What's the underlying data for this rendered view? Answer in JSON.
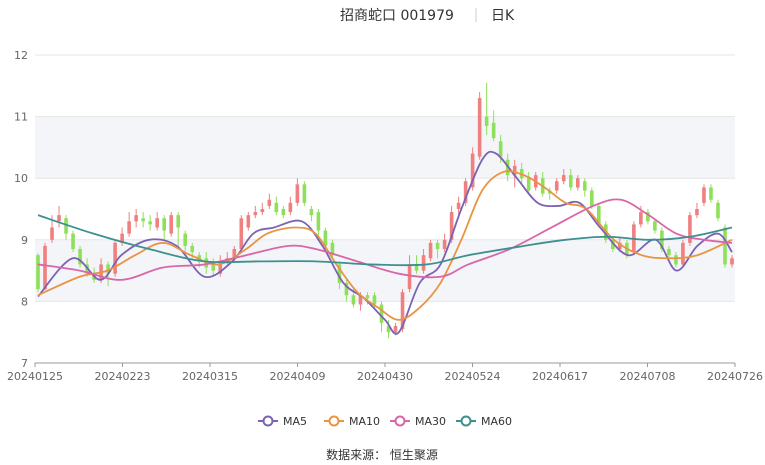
{
  "header": {
    "stock_title": "招商蛇口 001979",
    "period": "日K"
  },
  "source": "数据来源： 恒生聚源",
  "colors": {
    "up": "#f07f7f",
    "down": "#8ee05a",
    "grid_band": "#f4f5f8",
    "axis": "#999999"
  },
  "chart_data": {
    "type": "candlestick",
    "title": "招商蛇口 001979",
    "subtitle": "日K",
    "ylim": [
      7,
      12
    ],
    "y_ticks": [
      7,
      8,
      9,
      10,
      11,
      12
    ],
    "x_tick_labels": [
      "20240125",
      "20240223",
      "20240315",
      "20240409",
      "20240430",
      "20240524",
      "20240617",
      "20240708",
      "20240726"
    ],
    "ohlc": [
      [
        8.75,
        8.2,
        8.78,
        8.15
      ],
      [
        8.2,
        8.9,
        8.95,
        8.18
      ],
      [
        9.0,
        9.2,
        9.4,
        8.95
      ],
      [
        9.3,
        9.4,
        9.55,
        9.2
      ],
      [
        9.35,
        9.1,
        9.4,
        9.0
      ],
      [
        9.1,
        8.85,
        9.15,
        8.8
      ],
      [
        8.85,
        8.6,
        8.9,
        8.55
      ],
      [
        8.6,
        8.45,
        8.7,
        8.4
      ],
      [
        8.45,
        8.35,
        8.55,
        8.3
      ],
      [
        8.35,
        8.6,
        8.7,
        8.3
      ],
      [
        8.6,
        8.45,
        8.65,
        8.25
      ],
      [
        8.45,
        8.95,
        9.0,
        8.4
      ],
      [
        8.95,
        9.1,
        9.2,
        8.9
      ],
      [
        9.1,
        9.3,
        9.45,
        9.05
      ],
      [
        9.3,
        9.4,
        9.5,
        9.2
      ],
      [
        9.35,
        9.3,
        9.45,
        9.2
      ],
      [
        9.3,
        9.25,
        9.4,
        9.15
      ],
      [
        9.2,
        9.35,
        9.45,
        9.15
      ],
      [
        9.35,
        9.15,
        9.4,
        9.0
      ],
      [
        9.1,
        9.4,
        9.45,
        9.05
      ],
      [
        9.4,
        9.2,
        9.45,
        8.9
      ],
      [
        9.1,
        8.9,
        9.15,
        8.8
      ],
      [
        8.9,
        8.8,
        8.95,
        8.7
      ],
      [
        8.75,
        8.65,
        8.8,
        8.55
      ],
      [
        8.7,
        8.55,
        8.8,
        8.45
      ],
      [
        8.6,
        8.5,
        8.7,
        8.4
      ],
      [
        8.45,
        8.65,
        8.75,
        8.4
      ],
      [
        8.65,
        8.7,
        8.8,
        8.6
      ],
      [
        8.7,
        8.85,
        8.9,
        8.65
      ],
      [
        8.85,
        9.35,
        9.4,
        8.8
      ],
      [
        9.2,
        9.4,
        9.45,
        9.15
      ],
      [
        9.4,
        9.45,
        9.55,
        9.35
      ],
      [
        9.45,
        9.5,
        9.6,
        9.4
      ],
      [
        9.55,
        9.65,
        9.75,
        9.5
      ],
      [
        9.6,
        9.45,
        9.7,
        9.4
      ],
      [
        9.5,
        9.4,
        9.55,
        9.35
      ],
      [
        9.45,
        9.6,
        9.7,
        9.4
      ],
      [
        9.6,
        9.9,
        10.0,
        9.55
      ],
      [
        9.9,
        9.6,
        9.95,
        9.55
      ],
      [
        9.5,
        9.4,
        9.55,
        9.3
      ],
      [
        9.45,
        9.15,
        9.5,
        9.05
      ],
      [
        9.15,
        8.9,
        9.2,
        8.8
      ],
      [
        8.95,
        8.75,
        9.0,
        8.7
      ],
      [
        8.6,
        8.3,
        8.65,
        8.2
      ],
      [
        8.3,
        8.1,
        8.35,
        8.0
      ],
      [
        8.1,
        7.95,
        8.2,
        7.9
      ],
      [
        7.95,
        8.1,
        8.15,
        7.85
      ],
      [
        8.1,
        8.05,
        8.15,
        7.95
      ],
      [
        8.1,
        7.95,
        8.15,
        7.9
      ],
      [
        7.95,
        7.65,
        8.0,
        7.5
      ],
      [
        7.6,
        7.5,
        7.7,
        7.4
      ],
      [
        7.5,
        7.6,
        7.65,
        7.45
      ],
      [
        7.55,
        8.15,
        8.2,
        7.5
      ],
      [
        8.2,
        8.6,
        8.75,
        8.15
      ],
      [
        8.6,
        8.5,
        8.75,
        8.45
      ],
      [
        8.5,
        8.75,
        8.85,
        8.45
      ],
      [
        8.7,
        8.95,
        9.0,
        8.65
      ],
      [
        8.95,
        8.85,
        9.0,
        8.7
      ],
      [
        8.85,
        9.0,
        9.1,
        8.8
      ],
      [
        9.0,
        9.45,
        9.55,
        8.95
      ],
      [
        9.5,
        9.6,
        9.7,
        9.35
      ],
      [
        9.6,
        9.95,
        10.0,
        9.55
      ],
      [
        9.85,
        10.4,
        10.5,
        9.8
      ],
      [
        10.35,
        11.3,
        11.4,
        10.3
      ],
      [
        11.0,
        10.85,
        11.55,
        10.7
      ],
      [
        10.9,
        10.65,
        11.1,
        10.6
      ],
      [
        10.6,
        10.35,
        10.7,
        10.25
      ],
      [
        10.3,
        10.05,
        10.4,
        9.95
      ],
      [
        10.05,
        10.2,
        10.3,
        9.85
      ],
      [
        10.15,
        10.0,
        10.25,
        9.9
      ],
      [
        10.0,
        9.8,
        10.1,
        9.75
      ],
      [
        9.85,
        10.05,
        10.1,
        9.8
      ],
      [
        10.0,
        9.75,
        10.1,
        9.7
      ],
      [
        9.8,
        9.75,
        9.85,
        9.65
      ],
      [
        9.8,
        9.95,
        10.0,
        9.75
      ],
      [
        9.95,
        10.05,
        10.15,
        9.9
      ],
      [
        10.05,
        9.85,
        10.15,
        9.8
      ],
      [
        9.85,
        10.0,
        10.05,
        9.8
      ],
      [
        9.95,
        9.8,
        10.0,
        9.7
      ],
      [
        9.8,
        9.55,
        9.85,
        9.5
      ],
      [
        9.55,
        9.25,
        9.6,
        9.2
      ],
      [
        9.25,
        9.0,
        9.3,
        8.95
      ],
      [
        9.0,
        8.85,
        9.05,
        8.8
      ],
      [
        8.85,
        8.95,
        9.05,
        8.8
      ],
      [
        8.95,
        8.75,
        9.0,
        8.7
      ],
      [
        8.8,
        9.25,
        9.3,
        8.75
      ],
      [
        9.25,
        9.45,
        9.55,
        9.2
      ],
      [
        9.45,
        9.3,
        9.5,
        9.25
      ],
      [
        9.3,
        9.15,
        9.35,
        9.1
      ],
      [
        9.15,
        8.85,
        9.2,
        8.8
      ],
      [
        8.85,
        8.75,
        8.9,
        8.7
      ],
      [
        8.75,
        8.6,
        8.8,
        8.55
      ],
      [
        8.6,
        8.95,
        9.0,
        8.55
      ],
      [
        8.95,
        9.4,
        9.45,
        8.9
      ],
      [
        9.4,
        9.5,
        9.6,
        9.35
      ],
      [
        9.6,
        9.85,
        9.9,
        9.55
      ],
      [
        9.85,
        9.65,
        9.9,
        9.6
      ],
      [
        9.6,
        9.35,
        9.65,
        9.3
      ],
      [
        9.2,
        8.6,
        9.25,
        8.55
      ],
      [
        8.6,
        8.7,
        8.75,
        8.55
      ]
    ],
    "ma_series": [
      {
        "name": "MA5",
        "color": "#7b62b5",
        "points": [
          [
            0,
            8.08
          ],
          [
            5,
            8.7
          ],
          [
            9,
            8.35
          ],
          [
            12,
            8.75
          ],
          [
            16,
            9.0
          ],
          [
            20,
            8.9
          ],
          [
            24,
            8.4
          ],
          [
            28,
            8.65
          ],
          [
            31,
            9.1
          ],
          [
            34,
            9.2
          ],
          [
            38,
            9.3
          ],
          [
            41,
            8.9
          ],
          [
            44,
            8.3
          ],
          [
            47,
            8.05
          ],
          [
            50,
            7.7
          ],
          [
            52,
            7.5
          ],
          [
            55,
            8.3
          ],
          [
            58,
            8.6
          ],
          [
            61,
            9.5
          ],
          [
            64,
            10.3
          ],
          [
            66,
            10.4
          ],
          [
            69,
            10.0
          ],
          [
            72,
            9.6
          ],
          [
            75,
            9.55
          ],
          [
            78,
            9.6
          ],
          [
            81,
            9.2
          ],
          [
            85,
            8.75
          ],
          [
            89,
            9.0
          ],
          [
            92,
            8.5
          ],
          [
            95,
            8.9
          ],
          [
            98,
            9.1
          ],
          [
            100,
            8.8
          ]
        ]
      },
      {
        "name": "MA10",
        "color": "#e89442",
        "points": [
          [
            0,
            8.1
          ],
          [
            6,
            8.4
          ],
          [
            10,
            8.5
          ],
          [
            14,
            8.75
          ],
          [
            18,
            8.95
          ],
          [
            22,
            8.75
          ],
          [
            26,
            8.6
          ],
          [
            30,
            8.85
          ],
          [
            33,
            9.1
          ],
          [
            37,
            9.2
          ],
          [
            40,
            9.1
          ],
          [
            43,
            8.6
          ],
          [
            46,
            8.15
          ],
          [
            49,
            7.9
          ],
          [
            52,
            7.7
          ],
          [
            55,
            7.9
          ],
          [
            58,
            8.3
          ],
          [
            61,
            9.0
          ],
          [
            64,
            9.8
          ],
          [
            67,
            10.1
          ],
          [
            70,
            10.05
          ],
          [
            73,
            9.85
          ],
          [
            76,
            9.6
          ],
          [
            79,
            9.5
          ],
          [
            83,
            9.0
          ],
          [
            87,
            8.75
          ],
          [
            91,
            8.7
          ],
          [
            95,
            8.75
          ],
          [
            100,
            9.0
          ]
        ]
      },
      {
        "name": "MA30",
        "color": "#d966a8",
        "points": [
          [
            0,
            8.6
          ],
          [
            6,
            8.5
          ],
          [
            12,
            8.35
          ],
          [
            18,
            8.55
          ],
          [
            24,
            8.6
          ],
          [
            30,
            8.75
          ],
          [
            36,
            8.9
          ],
          [
            40,
            8.85
          ],
          [
            46,
            8.65
          ],
          [
            52,
            8.45
          ],
          [
            58,
            8.4
          ],
          [
            62,
            8.6
          ],
          [
            68,
            8.85
          ],
          [
            74,
            9.2
          ],
          [
            80,
            9.55
          ],
          [
            84,
            9.65
          ],
          [
            88,
            9.4
          ],
          [
            92,
            9.1
          ],
          [
            96,
            9.0
          ],
          [
            100,
            8.95
          ]
        ]
      },
      {
        "name": "MA60",
        "color": "#3e8f8f",
        "points": [
          [
            0,
            9.4
          ],
          [
            8,
            9.1
          ],
          [
            16,
            8.85
          ],
          [
            24,
            8.65
          ],
          [
            32,
            8.65
          ],
          [
            40,
            8.65
          ],
          [
            48,
            8.6
          ],
          [
            56,
            8.6
          ],
          [
            62,
            8.75
          ],
          [
            70,
            8.9
          ],
          [
            76,
            9.0
          ],
          [
            82,
            9.05
          ],
          [
            88,
            9.0
          ],
          [
            94,
            9.05
          ],
          [
            100,
            9.2
          ]
        ]
      }
    ],
    "legend": [
      "MA5",
      "MA10",
      "MA30",
      "MA60"
    ],
    "legend_position": "bottom-center",
    "grid": true
  }
}
